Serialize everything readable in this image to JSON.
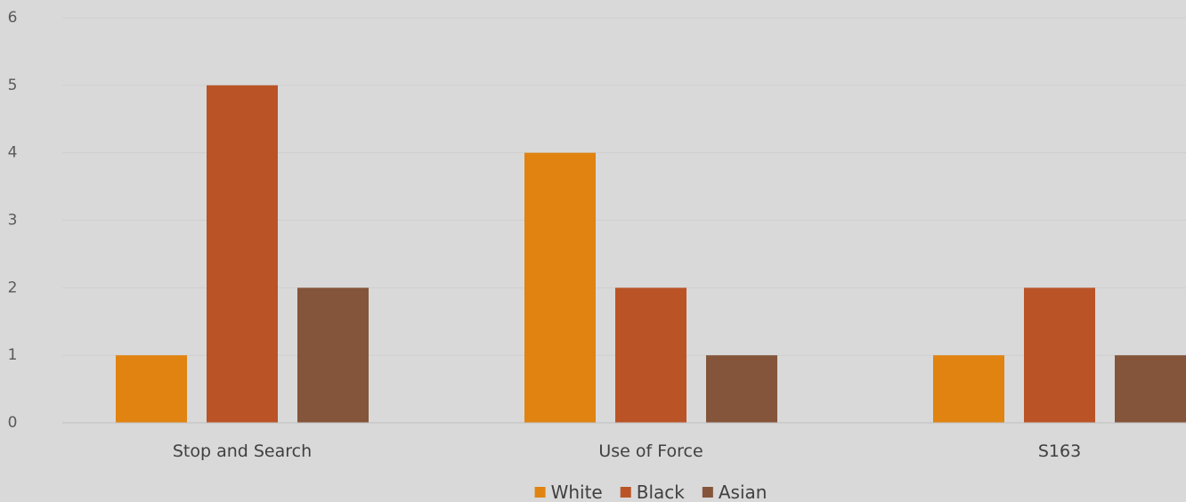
{
  "chart_data": {
    "type": "bar",
    "title": "",
    "xlabel": "",
    "ylabel": "",
    "categories": [
      "Stop and Search",
      "Use of Force",
      "S163"
    ],
    "series": [
      {
        "name": "White",
        "values": [
          1,
          4,
          1
        ],
        "color": "#e08310"
      },
      {
        "name": "Black",
        "values": [
          5,
          2,
          2
        ],
        "color": "#ba5427"
      },
      {
        "name": "Asian",
        "values": [
          2,
          1,
          1
        ],
        "color": "#84553a"
      }
    ],
    "ylim": [
      0,
      6
    ],
    "yticks": [
      "0",
      "1",
      "2",
      "3",
      "4",
      "5",
      "6"
    ],
    "grid": true,
    "legend_position": "bottom"
  }
}
